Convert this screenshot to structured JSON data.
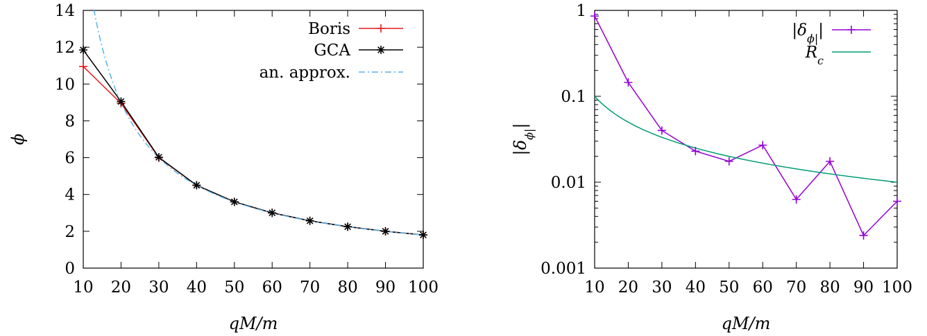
{
  "chart_data": [
    {
      "type": "line",
      "title": "",
      "xlabel": "qM/m",
      "ylabel": "ϕ",
      "xlim": [
        10,
        100
      ],
      "ylim": [
        0,
        14
      ],
      "xticks": [
        10,
        20,
        30,
        40,
        50,
        60,
        70,
        80,
        90,
        100
      ],
      "yticks": [
        0,
        2,
        4,
        6,
        8,
        10,
        12,
        14
      ],
      "legend_position": "top-right",
      "series": [
        {
          "name": "Boris",
          "color": "#e41a1c",
          "marker": "plus",
          "style": "solid",
          "x": [
            10,
            20,
            30,
            40,
            50,
            60,
            70,
            80,
            90,
            100
          ],
          "y": [
            10.95,
            8.95,
            6.0,
            4.5,
            3.6,
            3.0,
            2.57,
            2.25,
            2.0,
            1.8
          ]
        },
        {
          "name": "GCA",
          "color": "#000000",
          "marker": "star",
          "style": "solid",
          "x": [
            10,
            20,
            30,
            40,
            50,
            60,
            70,
            80,
            90,
            100
          ],
          "y": [
            11.85,
            9.05,
            6.02,
            4.5,
            3.6,
            3.0,
            2.57,
            2.25,
            2.0,
            1.8
          ]
        },
        {
          "name": "an. approx.",
          "color": "#56b4e9",
          "marker": "none",
          "style": "dashdot",
          "function": "180/x",
          "x_range": [
            12.8,
            100
          ]
        }
      ]
    },
    {
      "type": "line",
      "title": "",
      "xlabel": "qM/m",
      "ylabel": "|δ_ϕ|",
      "xlim": [
        10,
        100
      ],
      "ylim": [
        0.001,
        1
      ],
      "yscale": "log",
      "xticks": [
        10,
        20,
        30,
        40,
        50,
        60,
        70,
        80,
        90,
        100
      ],
      "yticks": [
        0.001,
        0.01,
        0.1,
        1
      ],
      "ytick_labels": [
        "0.001",
        "0.01",
        "0.1",
        "1"
      ],
      "legend_position": "top-right",
      "series": [
        {
          "name": "|δ_ϕ|",
          "color": "#9400d3",
          "marker": "plus",
          "style": "solid",
          "x": [
            10,
            20,
            30,
            40,
            50,
            60,
            70,
            80,
            90,
            100
          ],
          "y": [
            0.86,
            0.145,
            0.04,
            0.023,
            0.0175,
            0.027,
            0.0063,
            0.0175,
            0.0024,
            0.006
          ]
        },
        {
          "name": "R_c",
          "color": "#009e73",
          "marker": "none",
          "style": "solid",
          "function": "1/x",
          "x_range": [
            10,
            100
          ]
        }
      ]
    }
  ]
}
